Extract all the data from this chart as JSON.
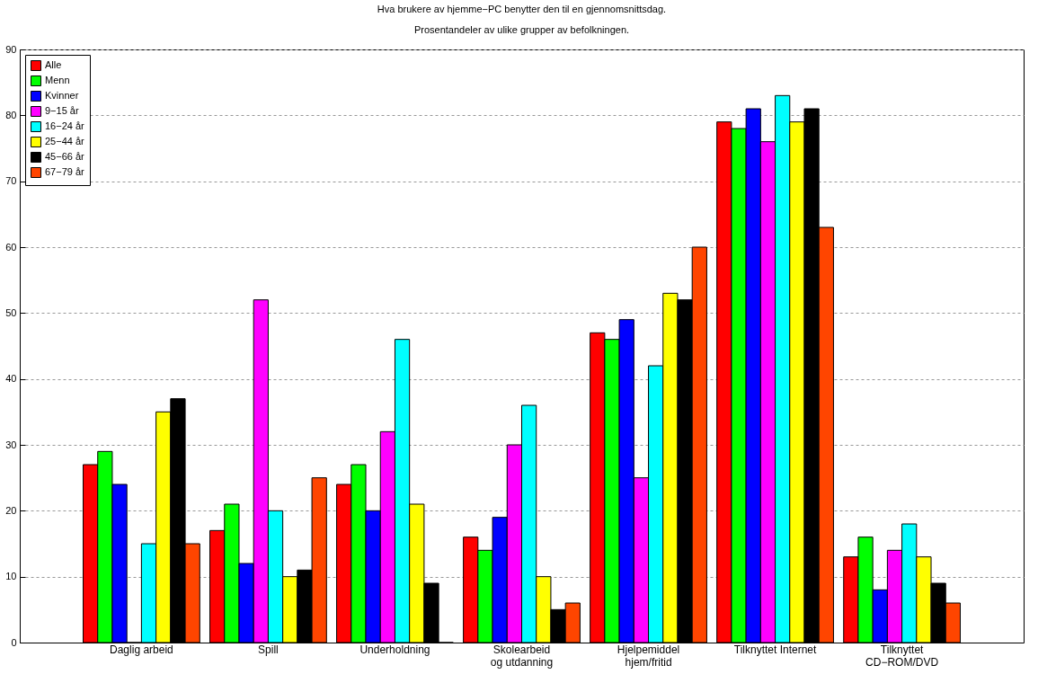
{
  "chart_data": {
    "type": "bar",
    "title": "Hva brukere av hjemme−PC benytter den til en gjennomsnittsdag.",
    "subtitle": "Prosentandeler av ulike grupper av befolkningen.",
    "categories": [
      "Daglig arbeid",
      "Spill",
      "Underholdning",
      "Skolearbeid\nog utdanning",
      "Hjelpemiddel\nhjem/fritid",
      "Tilknyttet Internet",
      "Tilknyttet\nCD−ROM/DVD"
    ],
    "series": [
      {
        "name": "Alle",
        "color": "#ff0000",
        "values": [
          27,
          17,
          24,
          16,
          47,
          79,
          13
        ]
      },
      {
        "name": "Menn",
        "color": "#00ff00",
        "values": [
          29,
          21,
          27,
          14,
          46,
          78,
          16
        ]
      },
      {
        "name": "Kvinner",
        "color": "#0000ff",
        "values": [
          24,
          12,
          20,
          19,
          49,
          81,
          8
        ]
      },
      {
        "name": "9−15 år",
        "color": "#ff00ff",
        "values": [
          0,
          52,
          32,
          30,
          25,
          76,
          14
        ]
      },
      {
        "name": "16−24 år",
        "color": "#00ffff",
        "values": [
          15,
          20,
          46,
          36,
          42,
          83,
          18
        ]
      },
      {
        "name": "25−44 år",
        "color": "#ffff00",
        "values": [
          35,
          10,
          21,
          10,
          53,
          79,
          13
        ]
      },
      {
        "name": "45−66 år",
        "color": "#000000",
        "values": [
          37,
          11,
          9,
          5,
          52,
          81,
          9
        ]
      },
      {
        "name": "67−79 år",
        "color": "#ff4500",
        "values": [
          15,
          25,
          0,
          6,
          60,
          63,
          6
        ]
      }
    ],
    "ylim": [
      0,
      90
    ],
    "yticks": [
      0,
      10,
      20,
      30,
      40,
      50,
      60,
      70,
      80,
      90
    ],
    "grid": "y",
    "legend": "top left"
  }
}
